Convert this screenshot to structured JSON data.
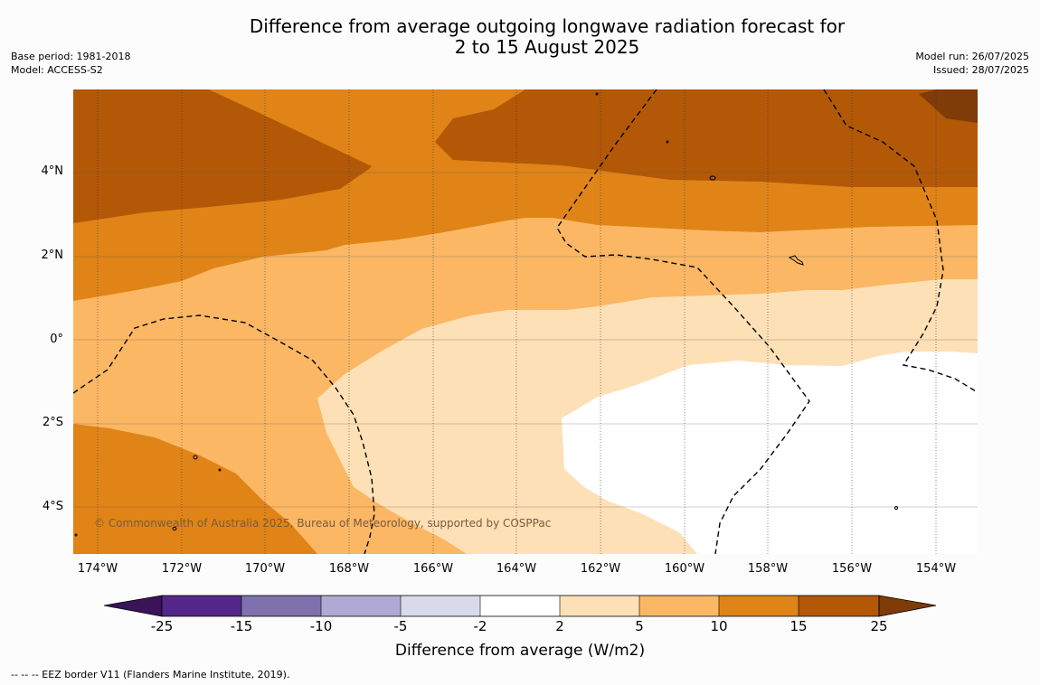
{
  "title_line1": "Difference from average outgoing longwave radiation forecast for",
  "title_line2": "2 to 15 August 2025",
  "meta_left": {
    "base_period": "Base period: 1981-2018",
    "model": "Model: ACCESS-S2"
  },
  "meta_right": {
    "model_run": "Model run: 26/07/2025",
    "issued": "Issued: 28/07/2025"
  },
  "lat_labels": [
    "4°N",
    "2°N",
    "0°",
    "2°S",
    "4°S"
  ],
  "lon_labels": [
    "174°W",
    "172°W",
    "170°W",
    "168°W",
    "166°W",
    "164°W",
    "162°W",
    "160°W",
    "158°W",
    "156°W",
    "154°W"
  ],
  "copyright": "© Commonwealth of Australia 2025, Bureau of Meteorology, supported by COSPPac",
  "colorbar": {
    "title": "Difference from average (W/m2)",
    "ticks": [
      "-25",
      "-15",
      "-10",
      "-5",
      "-2",
      "2",
      "5",
      "10",
      "15",
      "25"
    ],
    "colors": [
      "#3b1357",
      "#54288a",
      "#7e71ae",
      "#b1a9d3",
      "#d9d9ec",
      "#ffffff",
      "#fde0b6",
      "#fbb764",
      "#e08417",
      "#b35806",
      "#7f3b08"
    ]
  },
  "footnote": "--  --  -- EEZ border V11 (Flanders Marine Institute, 2019)."
}
